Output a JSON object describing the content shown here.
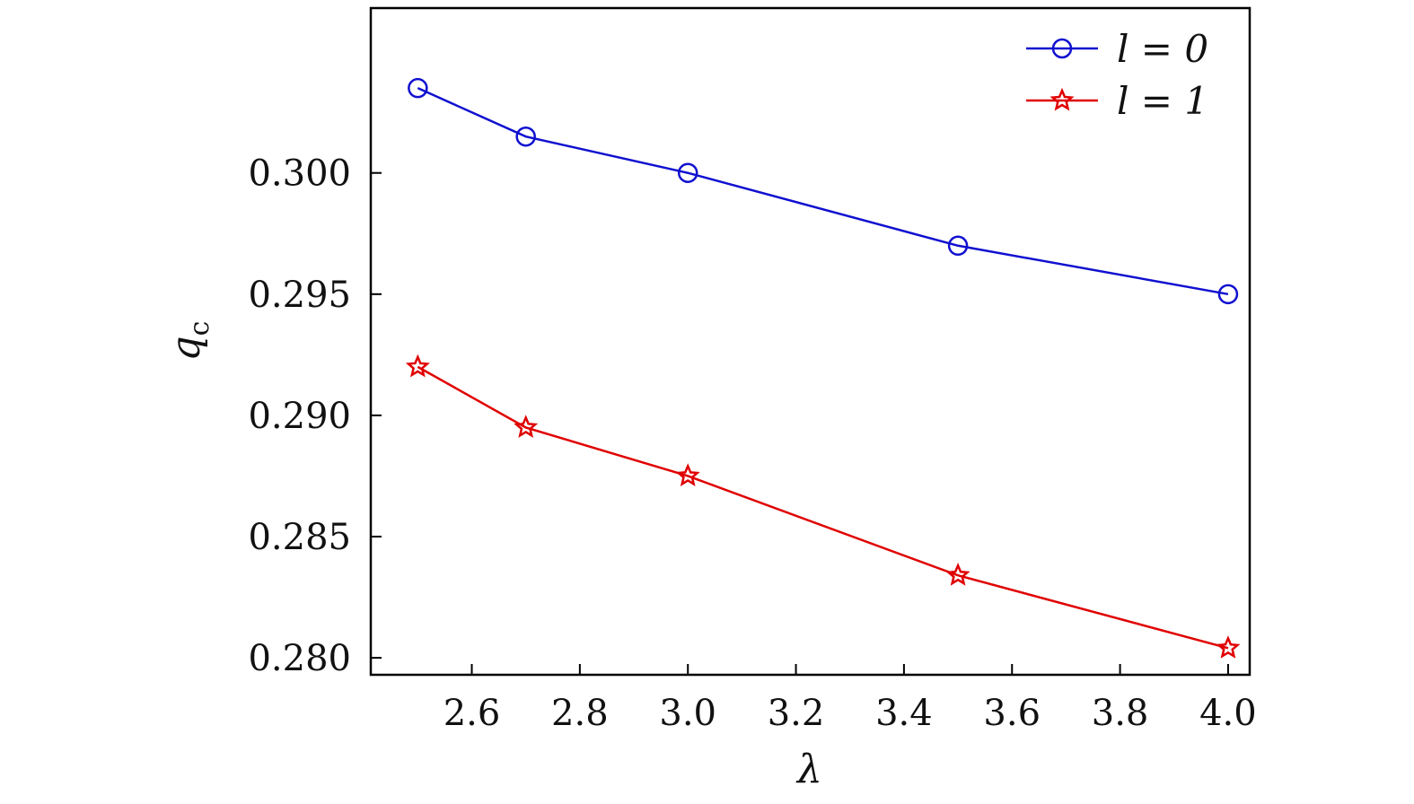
{
  "chart_data": {
    "type": "line",
    "title": "",
    "xlabel": "λ",
    "ylabel": "q",
    "ylabel_subscript": "c",
    "xlim": [
      2.413,
      4.04
    ],
    "ylim": [
      0.2793,
      0.3068
    ],
    "xticks": [
      2.6,
      2.8,
      3.0,
      3.2,
      3.4,
      3.6,
      3.8,
      4.0
    ],
    "xtick_labels": [
      "2.6",
      "2.8",
      "3.0",
      "3.2",
      "3.4",
      "3.6",
      "3.8",
      "4.0"
    ],
    "yticks": [
      0.28,
      0.285,
      0.29,
      0.295,
      0.3
    ],
    "ytick_labels": [
      "0.280",
      "0.285",
      "0.290",
      "0.295",
      "0.300"
    ],
    "grid": false,
    "legend_position": "top-right",
    "x": [
      2.5,
      2.7,
      3.0,
      3.5,
      4.0
    ],
    "series": [
      {
        "name": "l = 0",
        "color": "#1010d0",
        "marker": "circle",
        "values": [
          0.3035,
          0.3015,
          0.3,
          0.297,
          0.295
        ]
      },
      {
        "name": "l = 1",
        "color": "#e00000",
        "marker": "star",
        "values": [
          0.292,
          0.2895,
          0.2875,
          0.2834,
          0.2804
        ]
      }
    ]
  }
}
